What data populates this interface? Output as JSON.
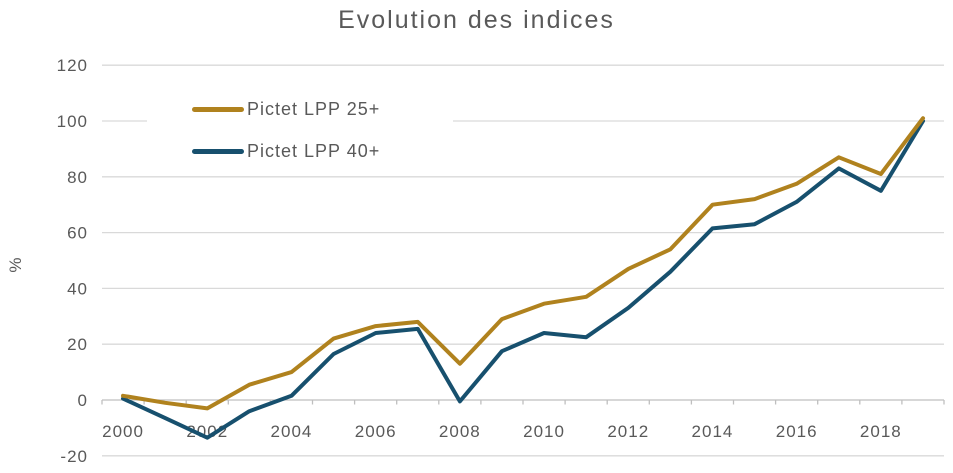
{
  "chart_data": {
    "type": "line",
    "title": "Evolution des indices",
    "xlabel": "",
    "ylabel": "%",
    "ylim": [
      -20,
      120
    ],
    "y_ticks": [
      120,
      100,
      80,
      60,
      40,
      20,
      0,
      -20
    ],
    "x_tick_labels": [
      "2000",
      "2002",
      "2004",
      "2006",
      "2008",
      "2010",
      "2012",
      "2014",
      "2016",
      "2018"
    ],
    "categories": [
      2000,
      2001,
      2002,
      2003,
      2004,
      2005,
      2006,
      2007,
      2008,
      2009,
      2010,
      2011,
      2012,
      2013,
      2014,
      2015,
      2016,
      2017,
      2018,
      2019
    ],
    "grid": true,
    "legend_position": "upper-left-inside",
    "series": [
      {
        "name": "Pictet LPP 25+",
        "color": "#B0821E",
        "values": [
          1.5,
          -1,
          -3,
          5.5,
          10,
          22,
          26.5,
          28,
          13,
          29,
          34.5,
          37,
          47,
          54,
          70,
          72,
          77.5,
          87,
          81,
          101
        ]
      },
      {
        "name": "Pictet LPP 40+",
        "color": "#17506E",
        "values": [
          0.5,
          -6.5,
          -13.5,
          -4,
          1.5,
          16.5,
          24,
          25.5,
          -0.5,
          17.5,
          24,
          22.5,
          33,
          46,
          61.5,
          63,
          71,
          83,
          75,
          100
        ]
      }
    ]
  }
}
